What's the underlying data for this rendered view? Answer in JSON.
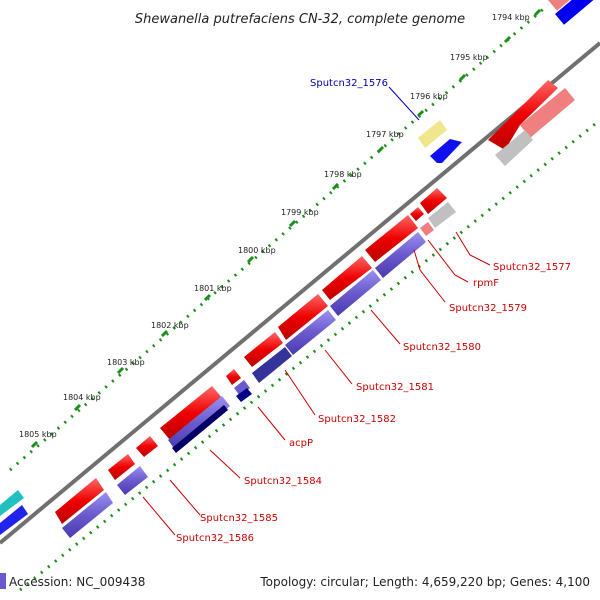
{
  "title": "Shewanella putrefaciens CN-32, complete genome",
  "footer": {
    "accession": "Accession: NC_009438",
    "topology": "Topology: circular; Length: 4,659,220 bp; Genes: 4,100"
  },
  "ticks": [
    "1794 kbp",
    "1795 kbp",
    "1796 kbp",
    "1797 kbp",
    "1798 kbp",
    "1799 kbp",
    "1800 kbp",
    "1801 kbp",
    "1802 kbp",
    "1803 kbp",
    "1804 kbp",
    "1805 kbp"
  ],
  "gene_labels": [
    {
      "text": "Sputcn32_1576",
      "color": "#0000aa"
    },
    {
      "text": "Sputcn32_1577",
      "color": "#cc0000"
    },
    {
      "text": "rpmF",
      "color": "#cc0000"
    },
    {
      "text": "Sputcn32_1579",
      "color": "#cc0000"
    },
    {
      "text": "Sputcn32_1580",
      "color": "#cc0000"
    },
    {
      "text": "Sputcn32_1581",
      "color": "#cc0000"
    },
    {
      "text": "Sputcn32_1582",
      "color": "#cc0000"
    },
    {
      "text": "acpP",
      "color": "#cc0000"
    },
    {
      "text": "Sputcn32_1584",
      "color": "#cc0000"
    },
    {
      "text": "Sputcn32_1585",
      "color": "#cc0000"
    },
    {
      "text": "Sputcn32_1586",
      "color": "#cc0000"
    }
  ],
  "colors": {
    "forward_cds": "#ee0000",
    "reverse_cds": "#6a5acd",
    "pseudo_gray": "#b8b8b8",
    "backbone": "#707070",
    "tick_dots": "#1a8f1a"
  }
}
